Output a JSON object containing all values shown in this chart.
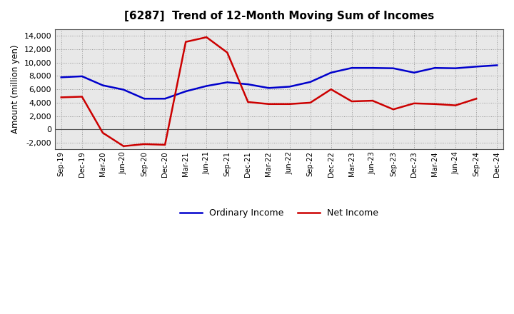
{
  "title": "[6287]  Trend of 12-Month Moving Sum of Incomes",
  "ylabel": "Amount (million yen)",
  "ylim": [
    -3000,
    15000
  ],
  "yticks": [
    -2000,
    0,
    2000,
    4000,
    6000,
    8000,
    10000,
    12000,
    14000
  ],
  "background_color": "#ffffff",
  "plot_bg_color": "#e8e8e8",
  "grid_color": "#999999",
  "labels": [
    "Sep-19",
    "Dec-19",
    "Mar-20",
    "Jun-20",
    "Sep-20",
    "Dec-20",
    "Mar-21",
    "Jun-21",
    "Sep-21",
    "Dec-21",
    "Mar-22",
    "Jun-22",
    "Sep-22",
    "Dec-22",
    "Mar-23",
    "Jun-23",
    "Sep-23",
    "Dec-23",
    "Mar-24",
    "Jun-24",
    "Sep-24",
    "Dec-24"
  ],
  "ordinary_income": [
    7800,
    7950,
    6600,
    5950,
    4600,
    4600,
    5700,
    6500,
    7050,
    6750,
    6200,
    6400,
    7100,
    8500,
    9200,
    9200,
    9150,
    8500,
    9200,
    9150,
    9400,
    9600
  ],
  "net_income": [
    4800,
    4900,
    -500,
    -2500,
    -2200,
    -2300,
    13100,
    13800,
    11500,
    4100,
    3800,
    3800,
    4000,
    6000,
    4200,
    4300,
    3000,
    3900,
    3800,
    3600,
    4600,
    null
  ],
  "ordinary_color": "#0000cc",
  "net_color": "#cc0000",
  "legend_labels": [
    "Ordinary Income",
    "Net Income"
  ]
}
